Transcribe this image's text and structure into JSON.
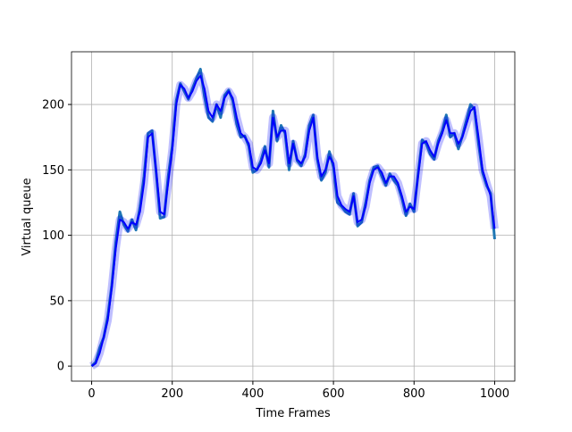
{
  "chart_data": {
    "type": "line",
    "xlabel": "Time Frames",
    "ylabel": "Virtual queue",
    "x": [
      0,
      10,
      20,
      30,
      40,
      50,
      60,
      70,
      80,
      90,
      100,
      110,
      120,
      130,
      140,
      150,
      160,
      170,
      180,
      190,
      200,
      210,
      220,
      230,
      240,
      250,
      260,
      270,
      280,
      290,
      300,
      310,
      320,
      330,
      340,
      350,
      360,
      370,
      380,
      390,
      400,
      410,
      420,
      430,
      440,
      450,
      460,
      470,
      480,
      490,
      500,
      510,
      520,
      530,
      540,
      550,
      560,
      570,
      580,
      590,
      600,
      610,
      620,
      630,
      640,
      650,
      660,
      670,
      680,
      690,
      700,
      710,
      720,
      730,
      740,
      750,
      760,
      770,
      780,
      790,
      800,
      810,
      820,
      830,
      840,
      850,
      860,
      870,
      880,
      890,
      900,
      910,
      920,
      930,
      940,
      950,
      960,
      970,
      980,
      990,
      1000
    ],
    "series": [
      {
        "color": "#1f77b4",
        "values": [
          0,
          3,
          14,
          22,
          38,
          62,
          95,
          118,
          108,
          103,
          112,
          104,
          122,
          145,
          178,
          180,
          148,
          113,
          114,
          145,
          168,
          203,
          216,
          210,
          204,
          212,
          220,
          227,
          206,
          190,
          187,
          200,
          190,
          207,
          211,
          203,
          185,
          175,
          176,
          168,
          148,
          150,
          157,
          168,
          152,
          195,
          172,
          184,
          178,
          150,
          172,
          157,
          153,
          162,
          184,
          192,
          158,
          142,
          148,
          164,
          152,
          125,
          122,
          118,
          116,
          132,
          107,
          110,
          125,
          142,
          152,
          153,
          145,
          138,
          147,
          142,
          138,
          128,
          115,
          124,
          118,
          147,
          173,
          170,
          162,
          158,
          172,
          180,
          192,
          175,
          178,
          166,
          176,
          188,
          200,
          196,
          170,
          148,
          138,
          132,
          97
        ]
      },
      {
        "color": "#0000ff",
        "values": [
          0,
          2,
          10,
          22,
          35,
          60,
          90,
          112,
          110,
          105,
          110,
          108,
          118,
          140,
          175,
          178,
          150,
          118,
          116,
          140,
          165,
          200,
          215,
          212,
          205,
          210,
          218,
          222,
          212,
          195,
          190,
          200,
          195,
          205,
          210,
          205,
          190,
          178,
          175,
          170,
          152,
          150,
          155,
          165,
          155,
          190,
          175,
          180,
          180,
          155,
          170,
          158,
          155,
          160,
          180,
          190,
          160,
          145,
          150,
          160,
          155,
          130,
          123,
          120,
          118,
          130,
          110,
          112,
          122,
          140,
          150,
          152,
          148,
          140,
          145,
          145,
          140,
          130,
          118,
          122,
          120,
          145,
          170,
          172,
          165,
          160,
          170,
          178,
          188,
          178,
          178,
          170,
          175,
          185,
          195,
          198,
          175,
          150,
          140,
          130,
          105
        ]
      }
    ],
    "xlim": [
      -50,
      1050
    ],
    "ylim": [
      -11.5,
      240.3
    ],
    "xticks": [
      0,
      200,
      400,
      600,
      800,
      1000
    ],
    "yticks": [
      0,
      50,
      100,
      150,
      200
    ],
    "grid": true
  }
}
